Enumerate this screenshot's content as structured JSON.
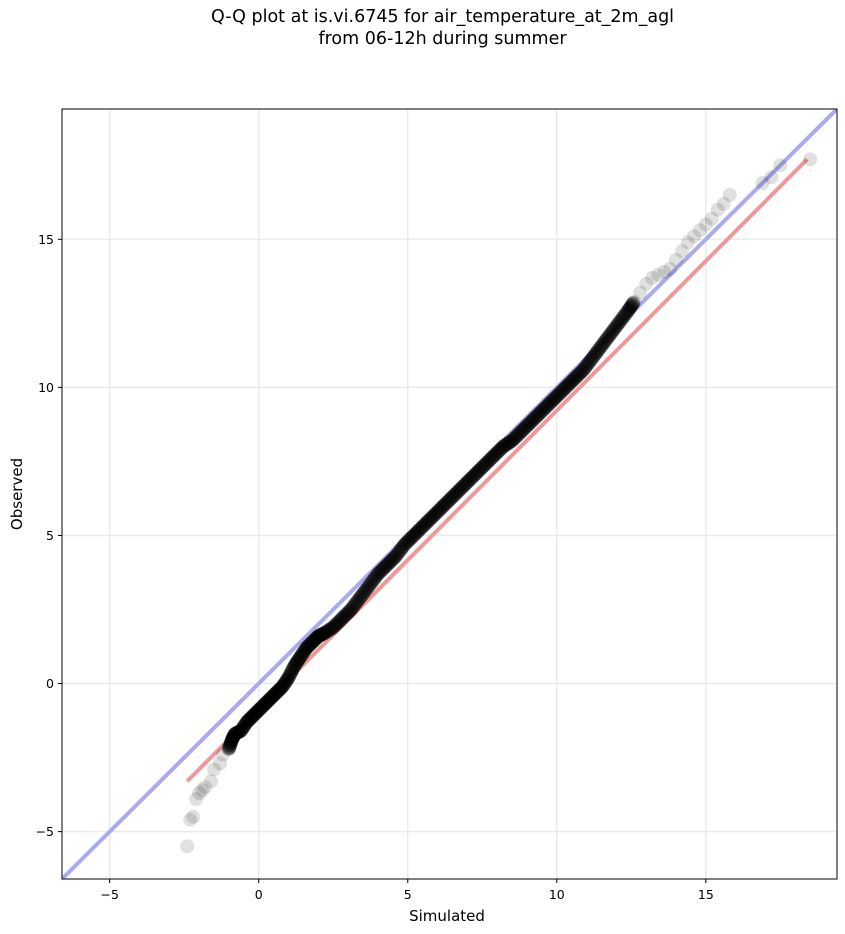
{
  "chart_data": {
    "type": "scatter",
    "title": "Q-Q plot at is.vi.6745 for air_temperature_at_2m_agl",
    "subtitle": "from 06-12h during summer",
    "xlabel": "Simulated",
    "ylabel": "Observed",
    "xlim": [
      -6.6,
      19.4
    ],
    "ylim": [
      -6.6,
      19.4
    ],
    "xticks": [
      -5,
      0,
      5,
      10,
      15
    ],
    "yticks": [
      -5,
      0,
      5,
      10,
      15
    ],
    "xtick_labels": [
      "−5",
      "0",
      "5",
      "10",
      "15"
    ],
    "ytick_labels": [
      "−5",
      "0",
      "5",
      "10",
      "15"
    ],
    "grid": true,
    "reference_line": {
      "x": [
        -6.6,
        19.4
      ],
      "y": [
        -6.6,
        19.4
      ],
      "color": "#aaaaee"
    },
    "fit_line": {
      "x": [
        -2.4,
        18.4
      ],
      "y": [
        -3.3,
        17.7
      ],
      "color": "#ee9999"
    },
    "point_color": "#000000",
    "quantiles": {
      "x": [
        -2.4,
        -2.3,
        -2.2,
        -2.1,
        -2.0,
        -1.9,
        -1.8,
        -1.6,
        -1.5,
        -1.3,
        -1.2,
        -1.0,
        -0.9,
        -0.8,
        -0.6,
        -0.4,
        -0.2,
        0.0,
        0.2,
        0.4,
        0.6,
        0.8,
        1.0,
        1.2,
        1.4,
        1.6,
        1.8,
        2.0,
        2.2,
        2.5,
        2.8,
        3.1,
        3.4,
        3.7,
        4.0,
        4.3,
        4.6,
        4.9,
        5.2,
        5.5,
        5.8,
        6.1,
        6.4,
        6.7,
        7.0,
        7.3,
        7.6,
        7.9,
        8.2,
        8.5,
        8.8,
        9.1,
        9.4,
        9.7,
        10.0,
        10.3,
        10.6,
        10.9,
        11.2,
        11.5,
        11.8,
        12.1,
        12.4,
        12.6,
        12.8,
        13.0,
        13.2,
        13.4,
        13.6,
        13.8,
        14.0,
        14.2,
        14.4,
        14.6,
        14.8,
        15.0,
        15.2,
        15.4,
        15.6,
        15.8,
        16.9,
        17.2,
        17.5,
        18.5
      ],
      "y": [
        -5.5,
        -4.6,
        -4.5,
        -3.9,
        -3.7,
        -3.6,
        -3.5,
        -3.3,
        -2.9,
        -2.7,
        -2.4,
        -2.2,
        -1.9,
        -1.7,
        -1.6,
        -1.3,
        -1.1,
        -0.9,
        -0.7,
        -0.5,
        -0.3,
        -0.1,
        0.2,
        0.6,
        0.9,
        1.2,
        1.4,
        1.6,
        1.7,
        1.9,
        2.2,
        2.5,
        2.9,
        3.3,
        3.7,
        4.0,
        4.3,
        4.7,
        5.0,
        5.3,
        5.6,
        5.9,
        6.2,
        6.5,
        6.8,
        7.1,
        7.4,
        7.7,
        8.0,
        8.2,
        8.5,
        8.8,
        9.1,
        9.4,
        9.7,
        10.0,
        10.3,
        10.6,
        11.0,
        11.4,
        11.8,
        12.2,
        12.6,
        12.9,
        13.2,
        13.5,
        13.7,
        13.8,
        13.9,
        14.0,
        14.3,
        14.6,
        14.9,
        15.1,
        15.3,
        15.5,
        15.7,
        16.0,
        16.2,
        16.5,
        16.9,
        17.1,
        17.5,
        17.7
      ]
    }
  }
}
